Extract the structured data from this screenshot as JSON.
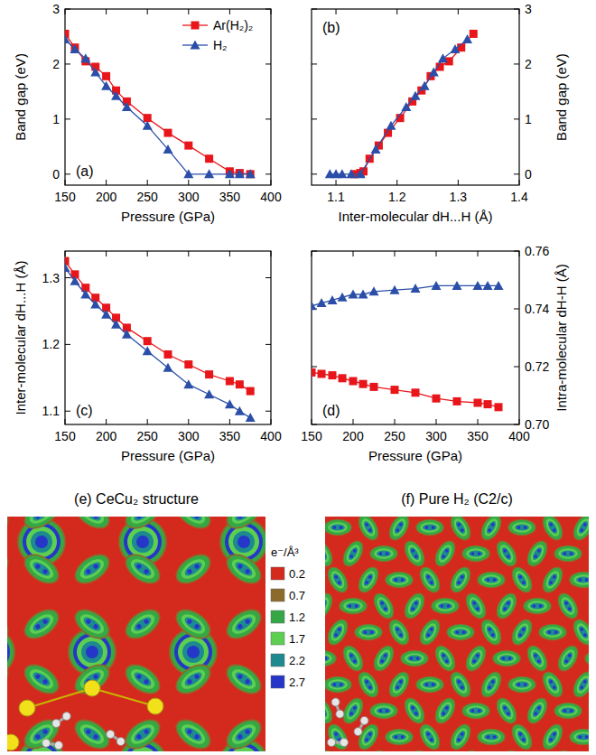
{
  "chart_data": [
    {
      "type": "line",
      "panel_label": "(a)",
      "x_label": "Pressure (GPa)",
      "y_label": "Band gap (eV)",
      "x": [
        150,
        162,
        175,
        187,
        200,
        212,
        225,
        250,
        275,
        300,
        325,
        350,
        362,
        375
      ],
      "xlim": [
        150,
        400
      ],
      "xticks": [
        150,
        200,
        250,
        300,
        350,
        400
      ],
      "ylim": [
        -0.2,
        3
      ],
      "yticks": [
        0,
        1,
        2,
        3
      ],
      "legend": "upper right",
      "series": [
        {
          "name": "Ar(H₂)₂",
          "color": "#e8161b",
          "marker": "square",
          "values": [
            2.55,
            2.3,
            2.05,
            1.95,
            1.78,
            1.52,
            1.32,
            1.02,
            0.75,
            0.52,
            0.28,
            0.05,
            0.02,
            0.0
          ]
        },
        {
          "name": "H₂",
          "color": "#2b4fa8",
          "marker": "triangle",
          "values": [
            2.45,
            2.27,
            2.1,
            1.85,
            1.6,
            1.42,
            1.22,
            0.88,
            0.45,
            0.0,
            0.0,
            0.0,
            0.0,
            0.0
          ]
        }
      ]
    },
    {
      "type": "line",
      "panel_label": "(b)",
      "x_label": "Inter-molecular dH...H (Å)",
      "y_label": "Band gap (eV)",
      "xlim": [
        1.06,
        1.4
      ],
      "xticks": [
        1.1,
        1.2,
        1.3,
        1.4
      ],
      "ylim": [
        -0.2,
        3
      ],
      "yticks": [
        0,
        1,
        2,
        3
      ],
      "series": [
        {
          "color": "#e8161b",
          "marker": "square",
          "x": [
            1.325,
            1.305,
            1.285,
            1.27,
            1.255,
            1.24,
            1.225,
            1.205,
            1.185,
            1.17,
            1.155,
            1.145,
            1.14,
            1.13
          ],
          "values": [
            2.55,
            2.3,
            2.05,
            1.95,
            1.78,
            1.52,
            1.32,
            1.02,
            0.75,
            0.52,
            0.28,
            0.05,
            0.02,
            0.0
          ]
        },
        {
          "color": "#2b4fa8",
          "marker": "triangle",
          "x": [
            1.315,
            1.295,
            1.275,
            1.26,
            1.245,
            1.23,
            1.215,
            1.19,
            1.165,
            1.14,
            1.125,
            1.11,
            1.1,
            1.09
          ],
          "values": [
            2.45,
            2.27,
            2.1,
            1.85,
            1.6,
            1.42,
            1.22,
            0.88,
            0.45,
            0.0,
            0.0,
            0.0,
            0.0,
            0.0
          ]
        }
      ]
    },
    {
      "type": "line",
      "panel_label": "(c)",
      "x_label": "Pressure (GPa)",
      "y_label": "Inter-molecular dH...H (Å)",
      "x": [
        150,
        162,
        175,
        187,
        200,
        212,
        225,
        250,
        275,
        300,
        325,
        350,
        362,
        375
      ],
      "xlim": [
        150,
        400
      ],
      "xticks": [
        150,
        200,
        250,
        300,
        350,
        400
      ],
      "ylim": [
        1.08,
        1.34
      ],
      "yticks": [
        1.1,
        1.2,
        1.3
      ],
      "series": [
        {
          "color": "#e8161b",
          "marker": "square",
          "values": [
            1.325,
            1.305,
            1.285,
            1.27,
            1.255,
            1.24,
            1.225,
            1.205,
            1.185,
            1.17,
            1.155,
            1.145,
            1.14,
            1.13
          ]
        },
        {
          "color": "#2b4fa8",
          "marker": "triangle",
          "values": [
            1.315,
            1.295,
            1.275,
            1.26,
            1.245,
            1.23,
            1.215,
            1.19,
            1.165,
            1.14,
            1.125,
            1.11,
            1.1,
            1.09
          ]
        }
      ]
    },
    {
      "type": "line",
      "panel_label": "(d)",
      "x_label": "Pressure (GPa)",
      "y_label": "Intra-molecular dH-H (Å)",
      "x": [
        150,
        162,
        175,
        187,
        200,
        212,
        225,
        250,
        275,
        300,
        325,
        350,
        362,
        375
      ],
      "xlim": [
        150,
        400
      ],
      "xticks": [
        150,
        200,
        250,
        300,
        350,
        400
      ],
      "ylim": [
        0.7,
        0.76
      ],
      "yticks": [
        {
          "value": 0.7,
          "label": "0.70"
        },
        0.72,
        0.74,
        0.76
      ],
      "series": [
        {
          "color": "#e8161b",
          "marker": "square",
          "values": [
            0.718,
            0.7175,
            0.717,
            0.716,
            0.715,
            0.714,
            0.713,
            0.712,
            0.711,
            0.709,
            0.708,
            0.7075,
            0.707,
            0.706
          ]
        },
        {
          "color": "#2b4fa8",
          "marker": "triangle",
          "values": [
            0.741,
            0.742,
            0.743,
            0.744,
            0.745,
            0.745,
            0.746,
            0.7465,
            0.747,
            0.748,
            0.748,
            0.748,
            0.748,
            0.748
          ]
        }
      ]
    }
  ],
  "figure": {
    "panels": [
      {
        "title": "(e) CeCu₂ structure"
      },
      {
        "title": "(f) Pure H₂ (C2/c)"
      }
    ],
    "colorbar": {
      "title": "e⁻/Å³",
      "levels": [
        0.2,
        0.7,
        1.2,
        1.7,
        2.2,
        2.7
      ],
      "colors": [
        "#d42a1e",
        "#8c6a2a",
        "#35a845",
        "#5ccf50",
        "#1d8a8f",
        "#2536c8"
      ]
    }
  }
}
